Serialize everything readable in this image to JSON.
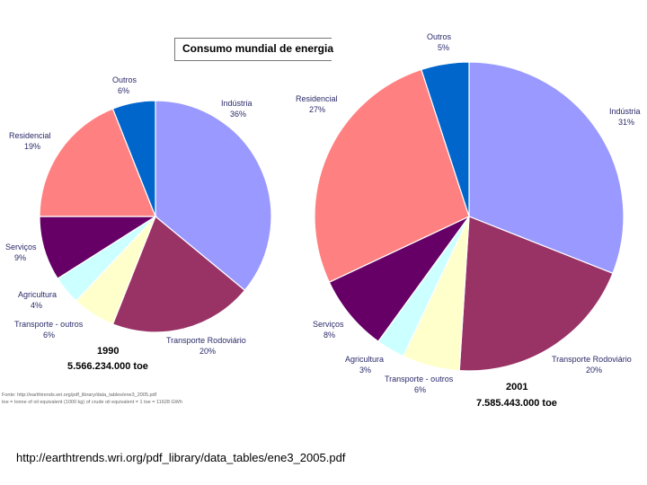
{
  "chart_data": [
    {
      "type": "pie",
      "title": "Consumo mundial de energia",
      "year": "1990",
      "total": "5.566.234.000 toe",
      "slices": [
        {
          "name": "Indústria",
          "pct_label": "36%",
          "value": 36,
          "color": "#9999ff"
        },
        {
          "name": "Transporte Rodoviário",
          "pct_label": "20%",
          "value": 20,
          "color": "#993366"
        },
        {
          "name": "Transporte - outros",
          "pct_label": "6%",
          "value": 6,
          "color": "#ffffcc"
        },
        {
          "name": "Agricultura",
          "pct_label": "4%",
          "value": 4,
          "color": "#ccffff"
        },
        {
          "name": "Serviços",
          "pct_label": "9%",
          "value": 9,
          "color": "#660066"
        },
        {
          "name": "Residencial",
          "pct_label": "19%",
          "value": 19,
          "color": "#ff8080"
        },
        {
          "name": "Outros",
          "pct_label": "6%",
          "value": 6,
          "color": "#0066cc"
        }
      ]
    },
    {
      "type": "pie",
      "title": "Consumo mundial de energia",
      "year": "2001",
      "total": "7.585.443.000 toe",
      "slices": [
        {
          "name": "Indústria",
          "pct_label": "31%",
          "value": 31,
          "color": "#9999ff"
        },
        {
          "name": "Transporte Rodoviário",
          "pct_label": "20%",
          "value": 20,
          "color": "#993366"
        },
        {
          "name": "Transporte - outros",
          "pct_label": "6%",
          "value": 6,
          "color": "#ffffcc"
        },
        {
          "name": "Agricultura",
          "pct_label": "3%",
          "value": 3,
          "color": "#ccffff"
        },
        {
          "name": "Serviços",
          "pct_label": "8%",
          "value": 8,
          "color": "#660066"
        },
        {
          "name": "Residencial",
          "pct_label": "27%",
          "value": 27,
          "color": "#ff8080"
        },
        {
          "name": "Outros",
          "pct_label": "5%",
          "value": 5,
          "color": "#0066cc"
        }
      ]
    }
  ],
  "title": "Consumo mundial de energia",
  "source_note": [
    "Fonte: http://earthtrends.wri.org/pdf_library/data_tables/ene3_2005.pdf",
    "toe = tonne of oil equivalent (1000 kg) of crude oil equivalent = 1 toe = 11628 GWh"
  ],
  "footer_url": "http://earthtrends.wri.org/pdf_library/data_tables/ene3_2005.pdf"
}
